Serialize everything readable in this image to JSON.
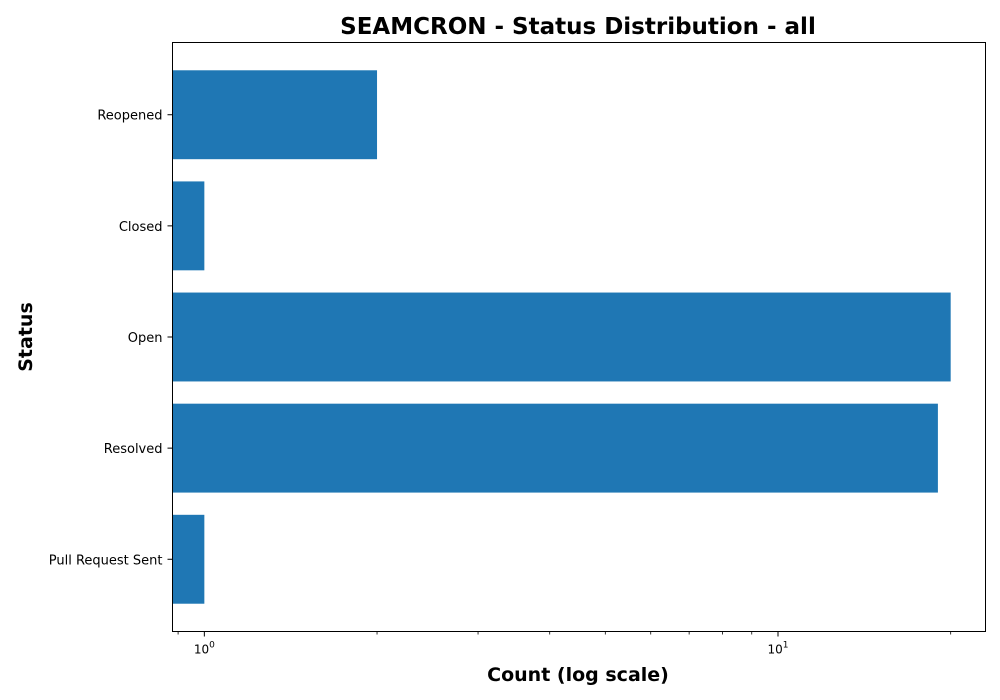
{
  "chart_data": {
    "type": "bar",
    "orientation": "horizontal",
    "title": "SEAMCRON - Status Distribution - all",
    "xlabel": "Count (log scale)",
    "ylabel": "Status",
    "x_scale": "log",
    "xlim": [
      0.88,
      23
    ],
    "categories": [
      "Reopened",
      "Closed",
      "Open",
      "Resolved",
      "Pull Request Sent"
    ],
    "values": [
      2,
      1,
      20,
      19,
      1
    ],
    "x_ticks": [
      {
        "value": 1,
        "base": "10",
        "exponent": "0"
      },
      {
        "value": 10,
        "base": "10",
        "exponent": "1"
      }
    ],
    "bar_color": "#1f77b4",
    "grid": false,
    "legend": false
  }
}
